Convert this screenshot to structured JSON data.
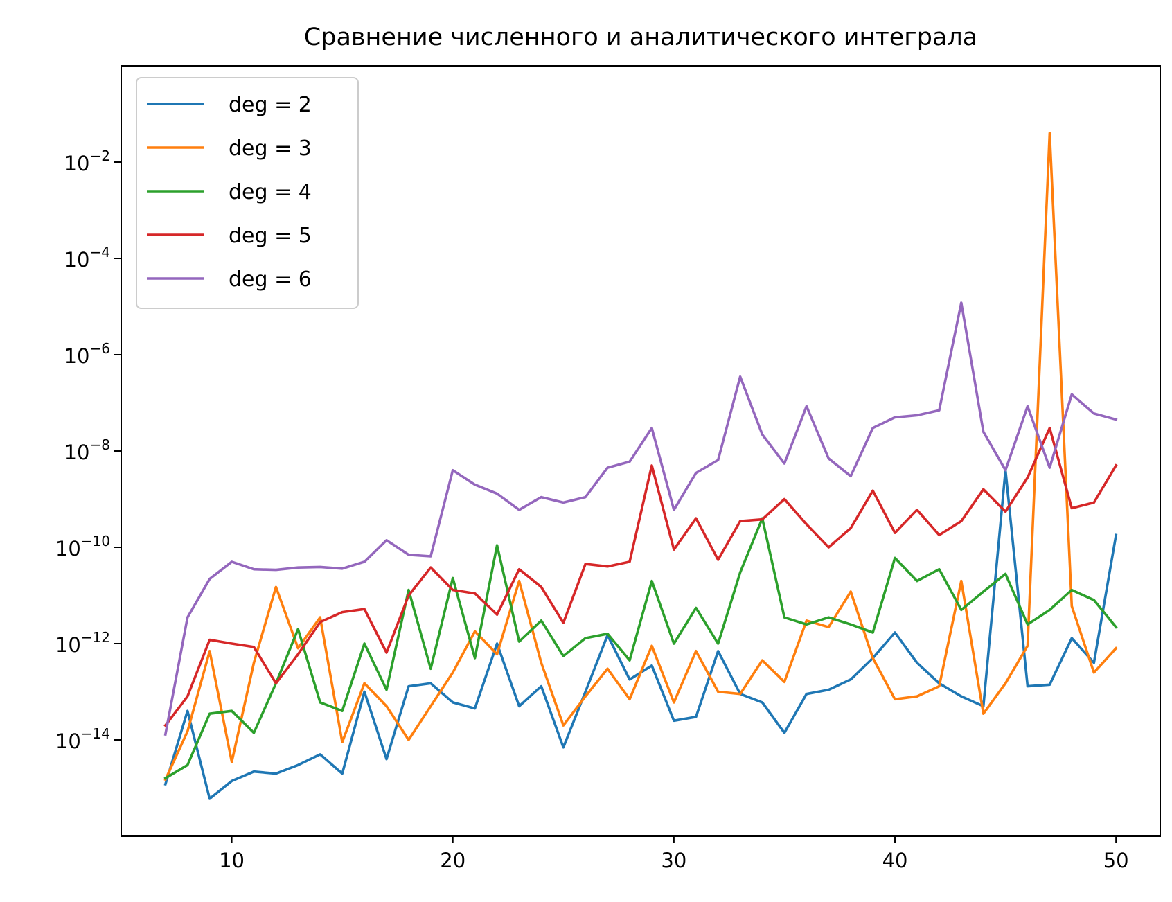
{
  "chart_data": {
    "type": "line",
    "title": "Сравнение численного и аналитического интеграла",
    "xlabel": "",
    "ylabel": "",
    "y_scale": "log",
    "xlim": [
      5,
      52
    ],
    "ylim": [
      1e-16,
      1
    ],
    "xticks": [
      10,
      20,
      30,
      40,
      50
    ],
    "xtick_labels": [
      "10",
      "20",
      "30",
      "40",
      "50"
    ],
    "yticks": [
      1e-14,
      1e-12,
      1e-10,
      1e-08,
      1e-06,
      0.0001,
      0.01
    ],
    "ytick_labels": [
      {
        "base": "10",
        "exp": "−14"
      },
      {
        "base": "10",
        "exp": "−12"
      },
      {
        "base": "10",
        "exp": "−10"
      },
      {
        "base": "10",
        "exp": "−8"
      },
      {
        "base": "10",
        "exp": "−6"
      },
      {
        "base": "10",
        "exp": "−4"
      },
      {
        "base": "10",
        "exp": "−2"
      }
    ],
    "grid": false,
    "legend_position": "top-left",
    "x": [
      7,
      8,
      9,
      10,
      11,
      12,
      13,
      14,
      15,
      16,
      17,
      18,
      19,
      20,
      21,
      22,
      23,
      24,
      25,
      26,
      27,
      28,
      29,
      30,
      31,
      32,
      33,
      34,
      35,
      36,
      37,
      38,
      39,
      40,
      41,
      42,
      43,
      44,
      45,
      46,
      47,
      48,
      49,
      50
    ],
    "series": [
      {
        "name": "deg = 2",
        "color": "#1f77b4",
        "values": [
          1.2e-15,
          4e-14,
          6e-16,
          1.4e-15,
          2.2e-15,
          2e-15,
          3e-15,
          5e-15,
          2e-15,
          1e-13,
          4e-15,
          1.3e-13,
          1.5e-13,
          6e-14,
          4.5e-14,
          1e-12,
          5e-14,
          1.3e-13,
          7e-15,
          1e-13,
          1.5e-12,
          1.8e-13,
          3.5e-13,
          2.5e-14,
          3e-14,
          7e-13,
          9e-14,
          6e-14,
          1.4e-14,
          9e-14,
          1.1e-13,
          1.8e-13,
          5e-13,
          1.7e-12,
          4e-13,
          1.5e-13,
          8e-14,
          5e-14,
          4e-09,
          1.3e-13,
          1.4e-13,
          1.3e-12,
          4e-13,
          1.8e-10
        ]
      },
      {
        "name": "deg = 3",
        "color": "#ff7f0e",
        "values": [
          1.5e-15,
          1.5e-14,
          7e-13,
          3.5e-15,
          4e-13,
          1.5e-11,
          8e-13,
          3.5e-12,
          9e-15,
          1.5e-13,
          5e-14,
          1e-14,
          5e-14,
          2.5e-13,
          1.8e-12,
          6e-13,
          2e-11,
          4e-13,
          2e-14,
          8e-14,
          3e-13,
          7e-14,
          9e-13,
          6e-14,
          7e-13,
          1e-13,
          9e-14,
          4.5e-13,
          1.6e-13,
          3e-12,
          2.2e-12,
          1.2e-11,
          5e-13,
          7e-14,
          8e-14,
          1.3e-13,
          2e-11,
          3.5e-14,
          1.5e-13,
          9e-13,
          0.04,
          6e-12,
          2.5e-13,
          8e-13
        ]
      },
      {
        "name": "deg = 4",
        "color": "#2ca02c",
        "values": [
          1.6e-15,
          3e-15,
          3.5e-14,
          4e-14,
          1.4e-14,
          1.5e-13,
          2e-12,
          6e-14,
          4e-14,
          1e-12,
          1.1e-13,
          1.3e-11,
          3e-13,
          2.3e-11,
          5e-13,
          1.1e-10,
          1.1e-12,
          3e-12,
          5.5e-13,
          1.3e-12,
          1.6e-12,
          4.5e-13,
          2e-11,
          1e-12,
          5.5e-12,
          1e-12,
          3e-11,
          4e-10,
          3.5e-12,
          2.5e-12,
          3.5e-12,
          2.5e-12,
          1.7e-12,
          6e-11,
          2e-11,
          3.5e-11,
          5e-12,
          1.2e-11,
          2.8e-11,
          2.5e-12,
          5e-12,
          1.3e-11,
          8e-12,
          2.2e-12
        ]
      },
      {
        "name": "deg = 5",
        "color": "#d62728",
        "values": [
          2e-14,
          8e-14,
          1.2e-12,
          1e-12,
          8.5e-13,
          1.5e-13,
          6e-13,
          2.8e-12,
          4.5e-12,
          5.2e-12,
          6.5e-13,
          1e-11,
          3.8e-11,
          1.3e-11,
          1.1e-11,
          4e-12,
          3.5e-11,
          1.5e-11,
          2.7e-12,
          4.5e-11,
          4e-11,
          5e-11,
          5e-09,
          9e-11,
          4e-10,
          5.5e-11,
          3.5e-10,
          3.8e-10,
          1e-09,
          3e-10,
          1e-10,
          2.5e-10,
          1.5e-09,
          2e-10,
          6e-10,
          1.8e-10,
          3.5e-10,
          1.6e-09,
          5.5e-10,
          2.8e-09,
          3e-08,
          6.5e-10,
          8.5e-10,
          5e-09
        ]
      },
      {
        "name": "deg = 6",
        "color": "#9467bd",
        "values": [
          1.3e-14,
          3.5e-12,
          2.2e-11,
          5e-11,
          3.5e-11,
          3.4e-11,
          3.8e-11,
          3.9e-11,
          3.6e-11,
          5e-11,
          1.4e-10,
          7e-11,
          6.5e-11,
          4e-09,
          2e-09,
          1.3e-09,
          6e-10,
          1.1e-09,
          8.5e-10,
          1.1e-09,
          4.5e-09,
          6e-09,
          3e-08,
          6e-10,
          3.5e-09,
          6.5e-09,
          3.5e-07,
          2.2e-08,
          5.5e-09,
          8.5e-08,
          7e-09,
          3e-09,
          3e-08,
          5e-08,
          5.5e-08,
          7e-08,
          1.2e-05,
          2.5e-08,
          4e-09,
          8.5e-08,
          4.5e-09,
          1.5e-07,
          6e-08,
          4.5e-08
        ]
      }
    ]
  }
}
